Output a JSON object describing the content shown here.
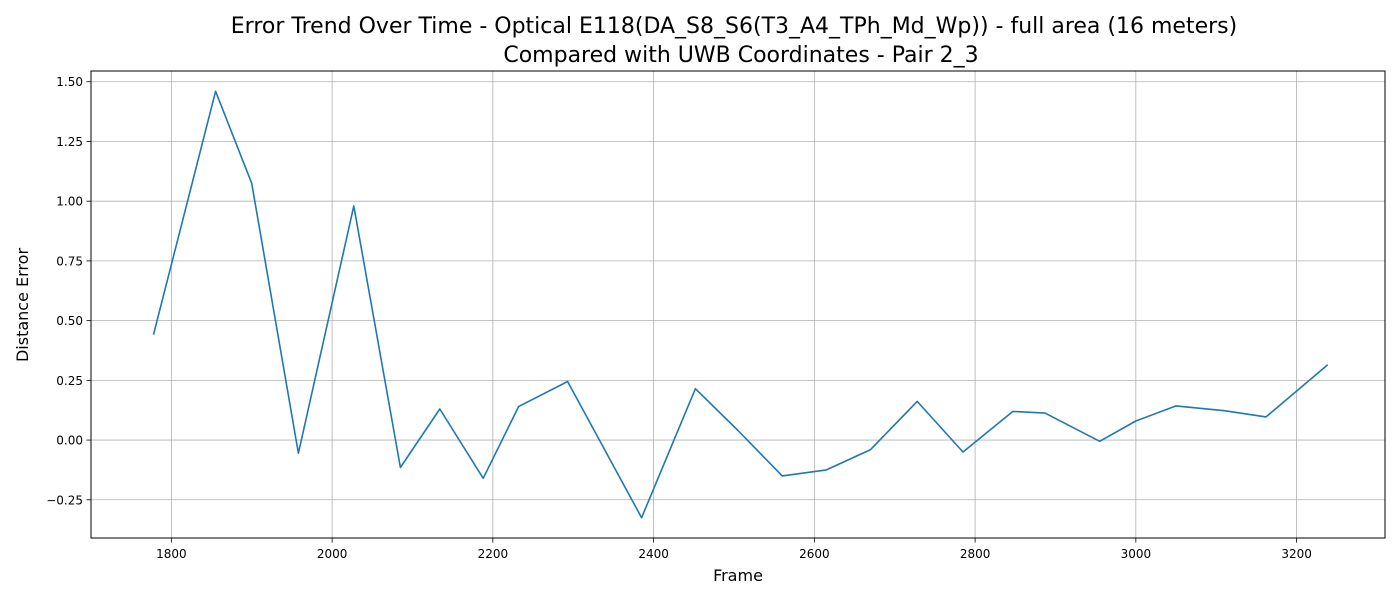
{
  "chart_data": {
    "type": "line",
    "title_lines": [
      "Error Trend Over Time - Optical E118(DA_S8_S6(T3_A4_TPh_Md_Wp)) - full area (16 meters)",
      "Compared with UWB Coordinates - Pair 2_3"
    ],
    "xlabel": "Frame",
    "ylabel": "Distance Error",
    "xlim": [
      1700,
      3310
    ],
    "ylim": [
      -0.41,
      1.545
    ],
    "x_ticks": [
      1800,
      2000,
      2200,
      2400,
      2600,
      2800,
      3000,
      3200
    ],
    "x_tick_labels": [
      "1800",
      "2000",
      "2200",
      "2400",
      "2600",
      "2800",
      "3000",
      "3200"
    ],
    "y_ticks": [
      -0.25,
      0.0,
      0.25,
      0.5,
      0.75,
      1.0,
      1.25,
      1.5
    ],
    "y_tick_labels": [
      "−0.25",
      "0.00",
      "0.25",
      "0.50",
      "0.75",
      "1.00",
      "1.25",
      "1.50"
    ],
    "grid": true,
    "series": [
      {
        "color": "#1f77b4",
        "points": [
          [
            1778,
            0.445
          ],
          [
            1855,
            1.46
          ],
          [
            1900,
            1.075
          ],
          [
            1958,
            -0.055
          ],
          [
            2027,
            0.98
          ],
          [
            2085,
            -0.115
          ],
          [
            2134,
            0.13
          ],
          [
            2188,
            -0.16
          ],
          [
            2232,
            0.14
          ],
          [
            2293,
            0.245
          ],
          [
            2385,
            -0.325
          ],
          [
            2452,
            0.215
          ],
          [
            2505,
            0.04
          ],
          [
            2560,
            -0.15
          ],
          [
            2615,
            -0.125
          ],
          [
            2670,
            -0.04
          ],
          [
            2728,
            0.162
          ],
          [
            2785,
            -0.05
          ],
          [
            2847,
            0.12
          ],
          [
            2887,
            0.113
          ],
          [
            2955,
            -0.005
          ],
          [
            3000,
            0.08
          ],
          [
            3050,
            0.143
          ],
          [
            3110,
            0.123
          ],
          [
            3162,
            0.097
          ],
          [
            3238,
            0.313
          ]
        ]
      }
    ]
  }
}
